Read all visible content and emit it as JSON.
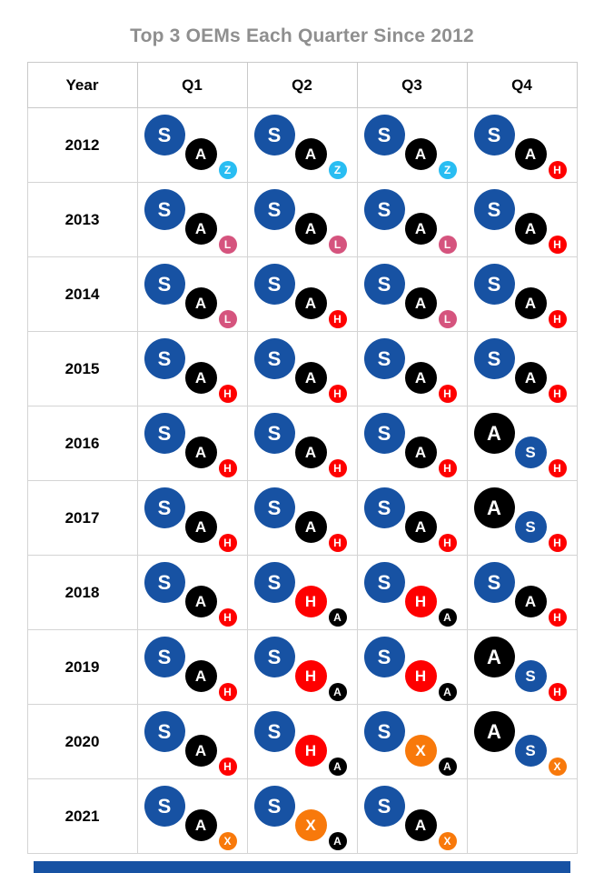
{
  "chart_data": {
    "type": "table",
    "title": "Top 3 OEMs Each Quarter Since 2012",
    "columns": [
      "Year",
      "Q1",
      "Q2",
      "Q3",
      "Q4"
    ],
    "oem_colors": {
      "S": "#1752a3",
      "A": "#000000",
      "Z": "#29bdf2",
      "L": "#d5547e",
      "H": "#fe0000",
      "X": "#f8790b"
    },
    "rows": [
      {
        "year": "2012",
        "quarters": [
          [
            "S",
            "A",
            "Z"
          ],
          [
            "S",
            "A",
            "Z"
          ],
          [
            "S",
            "A",
            "Z"
          ],
          [
            "S",
            "A",
            "H"
          ]
        ]
      },
      {
        "year": "2013",
        "quarters": [
          [
            "S",
            "A",
            "L"
          ],
          [
            "S",
            "A",
            "L"
          ],
          [
            "S",
            "A",
            "L"
          ],
          [
            "S",
            "A",
            "H"
          ]
        ]
      },
      {
        "year": "2014",
        "quarters": [
          [
            "S",
            "A",
            "L"
          ],
          [
            "S",
            "A",
            "H"
          ],
          [
            "S",
            "A",
            "L"
          ],
          [
            "S",
            "A",
            "H"
          ]
        ]
      },
      {
        "year": "2015",
        "quarters": [
          [
            "S",
            "A",
            "H"
          ],
          [
            "S",
            "A",
            "H"
          ],
          [
            "S",
            "A",
            "H"
          ],
          [
            "S",
            "A",
            "H"
          ]
        ]
      },
      {
        "year": "2016",
        "quarters": [
          [
            "S",
            "A",
            "H"
          ],
          [
            "S",
            "A",
            "H"
          ],
          [
            "S",
            "A",
            "H"
          ],
          [
            "A",
            "S",
            "H"
          ]
        ]
      },
      {
        "year": "2017",
        "quarters": [
          [
            "S",
            "A",
            "H"
          ],
          [
            "S",
            "A",
            "H"
          ],
          [
            "S",
            "A",
            "H"
          ],
          [
            "A",
            "S",
            "H"
          ]
        ]
      },
      {
        "year": "2018",
        "quarters": [
          [
            "S",
            "A",
            "H"
          ],
          [
            "S",
            "H",
            "A"
          ],
          [
            "S",
            "H",
            "A"
          ],
          [
            "S",
            "A",
            "H"
          ]
        ]
      },
      {
        "year": "2019",
        "quarters": [
          [
            "S",
            "A",
            "H"
          ],
          [
            "S",
            "H",
            "A"
          ],
          [
            "S",
            "H",
            "A"
          ],
          [
            "A",
            "S",
            "H"
          ]
        ]
      },
      {
        "year": "2020",
        "quarters": [
          [
            "S",
            "A",
            "H"
          ],
          [
            "S",
            "H",
            "A"
          ],
          [
            "S",
            "X",
            "A"
          ],
          [
            "A",
            "S",
            "X"
          ]
        ]
      },
      {
        "year": "2021",
        "quarters": [
          [
            "S",
            "A",
            "X"
          ],
          [
            "S",
            "X",
            "A"
          ],
          [
            "S",
            "A",
            "X"
          ],
          []
        ]
      }
    ],
    "title_color": "#8f8f8f",
    "footer_bar_color": "#1752a3"
  }
}
